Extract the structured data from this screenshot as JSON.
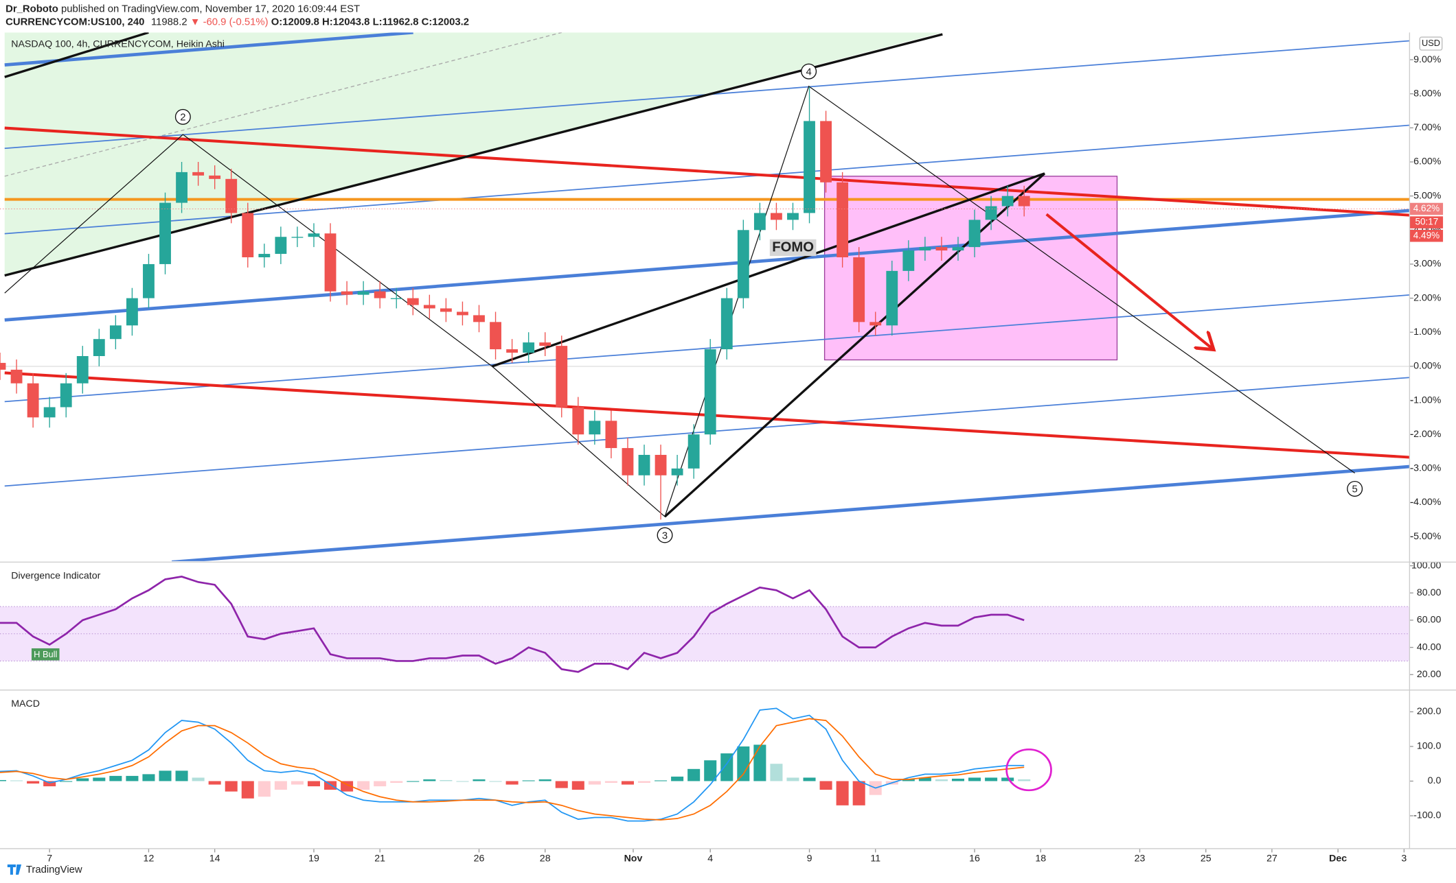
{
  "header": {
    "author": "Dr_Roboto",
    "published": "published on TradingView.com, November 17, 2020 16:09:44 EST",
    "symbol": "CURRENCYCOM:US100, 240",
    "last": "11988.2",
    "change": "▼ -60.9 (-0.51%)",
    "ohlc": "O:12009.8 H:12043.8 L:11962.8 C:12003.2"
  },
  "footer": "TradingView",
  "chart_data": [
    {
      "type": "candlestick",
      "title": "NASDAQ 100, 4h, CURRENCYCOM, Heikin Ashi",
      "currency": "USD",
      "x": [
        0,
        3,
        6,
        9,
        12,
        15,
        18,
        21,
        24,
        27,
        30,
        33,
        36,
        39,
        42,
        45,
        48,
        51,
        54,
        57,
        60,
        63,
        66,
        69,
        72,
        75,
        78,
        81,
        84,
        87,
        90,
        93,
        96,
        99,
        102,
        105,
        108,
        111,
        114,
        117,
        120,
        123,
        126,
        129,
        132,
        135,
        138,
        141,
        144,
        147,
        150,
        153,
        156,
        159,
        162,
        165,
        168,
        171,
        174,
        177,
        180,
        183,
        186
      ],
      "open": [
        0.1,
        -0.1,
        -0.5,
        -1.5,
        -1.2,
        -0.5,
        0.3,
        0.8,
        1.2,
        2.0,
        3.0,
        4.8,
        5.7,
        5.6,
        5.5,
        4.5,
        3.2,
        3.3,
        3.8,
        3.8,
        3.9,
        2.2,
        2.1,
        2.2,
        2.0,
        2.0,
        1.8,
        1.7,
        1.6,
        1.5,
        1.3,
        0.5,
        0.4,
        0.7,
        0.6,
        -1.2,
        -2.0,
        -1.6,
        -2.4,
        -3.2,
        -2.6,
        -3.2,
        -3.0,
        -2.0,
        0.5,
        2.0,
        4.0,
        4.5,
        4.3,
        4.5,
        7.2,
        5.4,
        3.2,
        1.3,
        1.2,
        2.8,
        3.4,
        3.5,
        3.4,
        3.5,
        4.3,
        4.7,
        5.0
      ],
      "high": [
        0.4,
        0.2,
        -0.2,
        -0.9,
        -0.2,
        0.6,
        1.1,
        1.5,
        2.3,
        3.3,
        5.1,
        6.0,
        6.0,
        5.9,
        5.8,
        4.8,
        3.6,
        4.1,
        4.1,
        4.2,
        4.2,
        2.5,
        2.5,
        2.5,
        2.3,
        2.3,
        2.1,
        2.0,
        1.9,
        1.8,
        1.6,
        0.8,
        1.0,
        1.0,
        0.9,
        -0.9,
        -1.3,
        -1.3,
        -2.1,
        -2.3,
        -2.3,
        -2.6,
        -1.7,
        0.8,
        2.3,
        4.3,
        4.8,
        4.8,
        4.8,
        8.2,
        7.5,
        5.7,
        3.5,
        1.6,
        3.1,
        3.7,
        3.8,
        3.8,
        3.8,
        4.6,
        5.0,
        5.3,
        5.3
      ],
      "low": [
        -0.4,
        -0.8,
        -1.8,
        -1.8,
        -1.5,
        -0.8,
        0.0,
        0.5,
        0.9,
        1.7,
        2.7,
        4.5,
        5.3,
        5.2,
        4.2,
        2.9,
        2.9,
        3.0,
        3.5,
        3.5,
        1.9,
        1.8,
        1.8,
        1.7,
        1.7,
        1.5,
        1.4,
        1.3,
        1.2,
        1.0,
        0.2,
        0.1,
        0.1,
        0.3,
        -1.5,
        -2.3,
        -2.3,
        -2.7,
        -3.5,
        -3.5,
        -4.5,
        -3.5,
        -3.3,
        -2.3,
        0.2,
        1.7,
        3.7,
        4.0,
        4.0,
        4.2,
        5.1,
        2.9,
        1.0,
        0.9,
        0.9,
        2.5,
        3.1,
        3.1,
        3.1,
        3.2,
        4.0,
        4.4,
        4.4
      ],
      "close": [
        -0.1,
        -0.5,
        -1.5,
        -1.2,
        -0.5,
        0.3,
        0.8,
        1.2,
        2.0,
        3.0,
        4.8,
        5.7,
        5.6,
        5.5,
        4.5,
        3.2,
        3.3,
        3.8,
        3.8,
        3.9,
        2.2,
        2.1,
        2.2,
        2.0,
        2.0,
        1.8,
        1.7,
        1.6,
        1.5,
        1.3,
        0.5,
        0.4,
        0.7,
        0.6,
        -1.2,
        -2.0,
        -1.6,
        -2.4,
        -3.2,
        -2.6,
        -3.2,
        -3.0,
        -2.0,
        0.5,
        2.0,
        4.0,
        4.5,
        4.3,
        4.5,
        7.2,
        5.4,
        3.2,
        1.3,
        1.2,
        2.8,
        3.4,
        3.5,
        3.4,
        3.5,
        4.3,
        4.7,
        5.0,
        4.7
      ],
      "up_color": "#26a69a",
      "down_color": "#ef5350",
      "xlim": [
        0,
        256
      ],
      "ylim": [
        -5.72,
        9.8
      ],
      "yticks": [
        {
          "value": 9,
          "label": "9.00%"
        },
        {
          "value": 8,
          "label": "8.00%"
        },
        {
          "value": 7,
          "label": "7.00%"
        },
        {
          "value": 6,
          "label": "6.00%"
        },
        {
          "value": 5,
          "label": "5.00%"
        },
        {
          "value": 4,
          "label": "4.00%"
        },
        {
          "value": 3,
          "label": "3.00%"
        },
        {
          "value": 2,
          "label": "2.00%"
        },
        {
          "value": 1,
          "label": "1.00%"
        },
        {
          "value": 0,
          "label": "0.00%"
        },
        {
          "value": -1,
          "label": "-1.00%"
        },
        {
          "value": -2,
          "label": "-2.00%"
        },
        {
          "value": -3,
          "label": "-3.00%"
        },
        {
          "value": -4,
          "label": "-4.00%"
        },
        {
          "value": -5,
          "label": "-5.00%"
        }
      ],
      "last_tags": [
        {
          "value": 4.62,
          "label": "4.62%",
          "color": "#f08080"
        },
        {
          "value": 4.49,
          "label": "4.49%",
          "color": "#ef5350"
        }
      ],
      "countdown": "50:17",
      "annotations": [
        "FOMO"
      ],
      "waves": [
        "2",
        "3",
        "4",
        "5"
      ]
    },
    {
      "type": "line",
      "title": "Divergence Indicator",
      "x": [
        0,
        3,
        6,
        9,
        12,
        15,
        18,
        21,
        24,
        27,
        30,
        33,
        36,
        39,
        42,
        45,
        48,
        51,
        54,
        57,
        60,
        63,
        66,
        69,
        72,
        75,
        78,
        81,
        84,
        87,
        90,
        93,
        96,
        99,
        102,
        105,
        108,
        111,
        114,
        117,
        120,
        123,
        126,
        129,
        132,
        135,
        138,
        141,
        144,
        147,
        150,
        153,
        156,
        159,
        162,
        165,
        168,
        171,
        174,
        177,
        180,
        183,
        186
      ],
      "values": [
        58,
        58,
        48,
        42,
        50,
        60,
        64,
        68,
        76,
        82,
        90,
        92,
        88,
        86,
        72,
        48,
        46,
        50,
        52,
        54,
        35,
        32,
        32,
        32,
        30,
        30,
        32,
        32,
        34,
        34,
        28,
        32,
        40,
        36,
        24,
        22,
        28,
        28,
        24,
        36,
        32,
        36,
        48,
        65,
        72,
        78,
        84,
        82,
        76,
        82,
        68,
        48,
        40,
        40,
        48,
        54,
        58,
        56,
        56,
        62,
        64,
        64,
        60
      ],
      "color": "#8e24aa",
      "band_color": "#f3e3fc",
      "levels": [
        30,
        50,
        70
      ],
      "xlim": [
        0,
        256
      ],
      "ylim": [
        10,
        102
      ],
      "yticks": [
        {
          "value": 100,
          "label": "100.00"
        },
        {
          "value": 80,
          "label": "80.00"
        },
        {
          "value": 60,
          "label": "60.00"
        },
        {
          "value": 40,
          "label": "40.00"
        },
        {
          "value": 20,
          "label": "20.00"
        }
      ],
      "annotation": "H Bull"
    },
    {
      "type": "macd",
      "title": "MACD",
      "x": [
        0,
        3,
        6,
        9,
        12,
        15,
        18,
        21,
        24,
        27,
        30,
        33,
        36,
        39,
        42,
        45,
        48,
        51,
        54,
        57,
        60,
        63,
        66,
        69,
        72,
        75,
        78,
        81,
        84,
        87,
        90,
        93,
        96,
        99,
        102,
        105,
        108,
        111,
        114,
        117,
        120,
        123,
        126,
        129,
        132,
        135,
        138,
        141,
        144,
        147,
        150,
        153,
        156,
        159,
        162,
        165,
        168,
        171,
        174,
        177,
        180,
        183,
        186
      ],
      "series": [
        {
          "color": "#2196f3",
          "values": [
            28,
            30,
            15,
            -5,
            5,
            20,
            30,
            45,
            60,
            90,
            140,
            175,
            170,
            150,
            110,
            60,
            30,
            25,
            30,
            20,
            -10,
            -40,
            -55,
            -60,
            -60,
            -60,
            -55,
            -55,
            -55,
            -50,
            -55,
            -70,
            -60,
            -55,
            -90,
            -110,
            -105,
            -105,
            -115,
            -115,
            -110,
            -95,
            -60,
            -10,
            50,
            120,
            205,
            210,
            180,
            190,
            150,
            60,
            0,
            -20,
            -5,
            10,
            20,
            20,
            25,
            35,
            40,
            45,
            45
          ]
        },
        {
          "color": "#ff6d00",
          "values": [
            25,
            28,
            22,
            10,
            5,
            12,
            20,
            30,
            45,
            70,
            110,
            145,
            160,
            160,
            140,
            110,
            75,
            50,
            40,
            35,
            15,
            -10,
            -30,
            -45,
            -55,
            -60,
            -60,
            -58,
            -55,
            -55,
            -55,
            -60,
            -62,
            -60,
            -70,
            -85,
            -95,
            -100,
            -105,
            -110,
            -112,
            -108,
            -95,
            -70,
            -30,
            20,
            100,
            160,
            170,
            180,
            175,
            130,
            70,
            20,
            5,
            5,
            10,
            15,
            18,
            25,
            30,
            35,
            40
          ]
        }
      ],
      "histogram": [
        3,
        2,
        -7,
        -15,
        0,
        8,
        10,
        15,
        15,
        20,
        30,
        30,
        10,
        -10,
        -30,
        -50,
        -45,
        -25,
        -10,
        -15,
        -25,
        -30,
        -25,
        -15,
        -5,
        0,
        5,
        3,
        0,
        5,
        0,
        -10,
        2,
        5,
        -20,
        -25,
        -10,
        -5,
        -10,
        -5,
        2,
        13,
        35,
        60,
        80,
        100,
        105,
        50,
        10,
        10,
        -25,
        -70,
        -70,
        -40,
        -10,
        5,
        10,
        5,
        7,
        10,
        10,
        10,
        5
      ],
      "hist_colors": [
        "#26a69a",
        "#b2dfdb",
        "#ef5350",
        "#ffcdd2"
      ],
      "xlim": [
        0,
        256
      ],
      "ylim": [
        -195,
        260
      ],
      "yticks": [
        {
          "value": 200,
          "label": "200.0"
        },
        {
          "value": 100,
          "label": "100.0"
        },
        {
          "value": 0,
          "label": "0.0"
        },
        {
          "value": -100,
          "label": "-100.0"
        }
      ],
      "xticks": [
        {
          "value": 9,
          "label": "7"
        },
        {
          "value": 27,
          "label": "12"
        },
        {
          "value": 39,
          "label": "14"
        },
        {
          "value": 57,
          "label": "19"
        },
        {
          "value": 69,
          "label": "21"
        },
        {
          "value": 87,
          "label": "26"
        },
        {
          "value": 99,
          "label": "28"
        },
        {
          "value": 115,
          "label": "Nov"
        },
        {
          "value": 129,
          "label": "4"
        },
        {
          "value": 147,
          "label": "9"
        },
        {
          "value": 159,
          "label": "11"
        },
        {
          "value": 177,
          "label": "16"
        },
        {
          "value": 189,
          "label": "18"
        },
        {
          "value": 207,
          "label": "23"
        },
        {
          "value": 219,
          "label": "25"
        },
        {
          "value": 231,
          "label": "27"
        },
        {
          "value": 243,
          "label": "Dec"
        },
        {
          "value": 255,
          "label": "3"
        }
      ]
    }
  ]
}
